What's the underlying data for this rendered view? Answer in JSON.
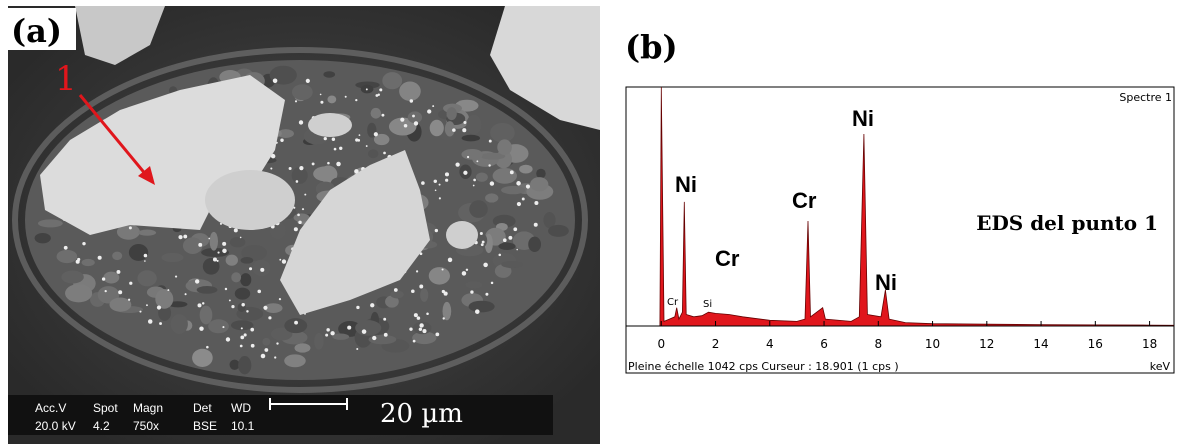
{
  "panel_a": {
    "label": "(a)",
    "marker": "1",
    "info": {
      "head": [
        "Acc.V",
        "Spot",
        "Magn",
        "Det",
        "WD"
      ],
      "row": [
        "20.0 kV",
        "4.2",
        "750x",
        "BSE",
        "10.1"
      ],
      "scale": "20 µm"
    }
  },
  "chart_data": {
    "type": "line",
    "label": "(b)",
    "title": "Spectre 1",
    "note": "EDS del punto 1",
    "footer": "Pleine échelle 1042 cps  Curseur : 18.901  (1 cps )",
    "x_unit": "keV",
    "annotations": [
      "Ni",
      "Ni",
      "Cr",
      "Cr",
      "Ni",
      "Cr",
      "Si"
    ],
    "x": [
      -0.05,
      0,
      0.1,
      0.3,
      0.5,
      0.57,
      0.65,
      0.78,
      0.85,
      0.92,
      1.2,
      1.5,
      1.74,
      2.0,
      2.5,
      3,
      4,
      5,
      5.3,
      5.41,
      5.5,
      5.95,
      6.05,
      7,
      7.3,
      7.47,
      7.6,
      8.1,
      8.26,
      8.4,
      9,
      10,
      12,
      14,
      16,
      18,
      18.9
    ],
    "series": [
      {
        "name": "Spectre 1",
        "color": "#e0161c",
        "values": [
          0,
          1042,
          20,
          30,
          40,
          80,
          30,
          60,
          541,
          50,
          40,
          45,
          60,
          55,
          50,
          40,
          25,
          20,
          30,
          458,
          40,
          80,
          30,
          20,
          40,
          837,
          50,
          40,
          157,
          30,
          15,
          10,
          8,
          6,
          5,
          4,
          3
        ]
      }
    ],
    "xlim": [
      -1.3,
      18.9
    ],
    "ylim": [
      0,
      1042
    ],
    "xticks": [
      0,
      2,
      4,
      6,
      8,
      10,
      12,
      14,
      16,
      18
    ]
  }
}
